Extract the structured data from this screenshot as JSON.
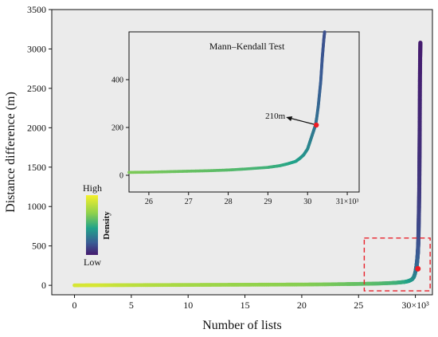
{
  "chart_data": [
    {
      "type": "scatter",
      "xlabel": "Number of lists",
      "ylabel": "Distance difference (m)",
      "xlim": [
        -2,
        31.5
      ],
      "ylim": [
        -120,
        3500
      ],
      "x_ticks": [
        0,
        5,
        10,
        15,
        20,
        25,
        30
      ],
      "x_tick_labels": [
        "0",
        "5",
        "10",
        "15",
        "20",
        "25",
        "30×10³"
      ],
      "y_ticks": [
        0,
        500,
        1000,
        1500,
        2000,
        2500,
        3000,
        3500
      ],
      "y_tick_labels": [
        "0",
        "500",
        "1000",
        "1500",
        "2000",
        "2500",
        "3000",
        "3500"
      ],
      "x_unit": "×10³",
      "background": "#ebebeb",
      "series": [
        {
          "x": [
            0,
            2,
            4,
            6,
            8,
            10,
            12,
            14,
            16,
            18,
            20,
            22,
            24,
            25,
            26,
            27,
            28,
            28.5,
            29,
            29.3,
            29.5,
            29.7,
            29.85,
            29.95,
            30.05,
            30.1,
            30.15,
            30.2,
            30.23,
            30.26,
            30.28,
            30.3,
            30.32,
            30.34,
            30.35,
            30.36,
            30.37,
            30.38,
            30.39,
            30.4,
            30.42,
            30.44
          ],
          "y": [
            0,
            1,
            2,
            3,
            4,
            5,
            6,
            7,
            8,
            9,
            10,
            12,
            16,
            18,
            20,
            24,
            30,
            35,
            42,
            50,
            60,
            75,
            100,
            140,
            200,
            240,
            300,
            380,
            450,
            550,
            700,
            850,
            1000,
            1200,
            1400,
            1600,
            1800,
            2000,
            2300,
            2600,
            2900,
            3080
          ]
        }
      ],
      "highlight_point": {
        "x": 30.22,
        "y": 210
      },
      "colorbar": {
        "title": "Density",
        "high_label": "High",
        "low_label": "Low"
      },
      "zoom_box": {
        "xlim": [
          25.5,
          31.3
        ],
        "ylim": [
          -70,
          600
        ]
      }
    },
    {
      "type": "scatter",
      "title": "Mann–Kendall Test",
      "xlim": [
        25.5,
        31.3
      ],
      "ylim": [
        -70,
        600
      ],
      "x_ticks": [
        26,
        27,
        28,
        29,
        30,
        31
      ],
      "x_tick_labels": [
        "26",
        "27",
        "28",
        "29",
        "30",
        "31×10³"
      ],
      "y_ticks": [
        0,
        200,
        400
      ],
      "y_tick_labels": [
        "0",
        "200",
        "400"
      ],
      "annotation": {
        "text": "210m",
        "x": 30.22,
        "y": 210
      },
      "series": [
        {
          "x": [
            25.5,
            26,
            26.5,
            27,
            27.5,
            28,
            28.5,
            29,
            29.3,
            29.5,
            29.7,
            29.8,
            29.9,
            30.0,
            30.05,
            30.1,
            30.15,
            30.2,
            30.23,
            30.27,
            30.3,
            30.33,
            30.35,
            30.37,
            30.39,
            30.41,
            30.43
          ],
          "y": [
            12,
            13,
            15,
            17,
            19,
            22,
            27,
            33,
            40,
            48,
            58,
            70,
            85,
            110,
            135,
            160,
            185,
            210,
            240,
            290,
            340,
            390,
            440,
            490,
            530,
            570,
            600
          ]
        }
      ]
    }
  ]
}
